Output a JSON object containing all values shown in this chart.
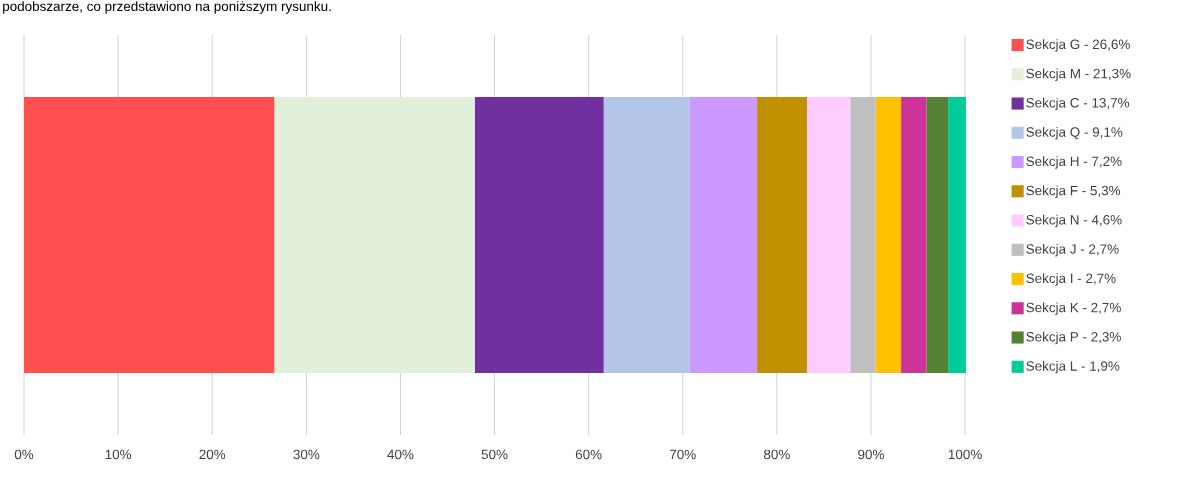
{
  "chart_data": {
    "type": "bar",
    "orientation": "horizontal",
    "stacked": true,
    "annotations": [
      "podobszarze, co przedstawiono na poniższym rysunku."
    ],
    "categories": [
      null
    ],
    "series": [
      {
        "name": "Sekcja G - 26,6%",
        "color": "#ff5050",
        "values": [
          26.6
        ]
      },
      {
        "name": "Sekcja M - 21,3%",
        "color": "#e2efda",
        "values": [
          21.3
        ]
      },
      {
        "name": "Sekcja C - 13,7%",
        "color": "#7030a0",
        "values": [
          13.7
        ]
      },
      {
        "name": "Sekcja Q - 9,1%",
        "color": "#b4c6e7",
        "values": [
          9.1
        ]
      },
      {
        "name": "Sekcja H - 7,2%",
        "color": "#cc99ff",
        "values": [
          7.2
        ]
      },
      {
        "name": "Sekcja F - 5,3%",
        "color": "#bf9000",
        "values": [
          5.3
        ]
      },
      {
        "name": "Sekcja N - 4,6%",
        "color": "#ffccff",
        "values": [
          4.6
        ]
      },
      {
        "name": "Sekcja J - 2,7%",
        "color": "#bfbfbf",
        "values": [
          2.7
        ]
      },
      {
        "name": "Sekcja I - 2,7%",
        "color": "#ffc000",
        "values": [
          2.7
        ]
      },
      {
        "name": "Sekcja K - 2,7%",
        "color": "#cc3399",
        "values": [
          2.7
        ]
      },
      {
        "name": "Sekcja P - 2,3%",
        "color": "#548235",
        "values": [
          2.3
        ]
      },
      {
        "name": "Sekcja L - 1,9%",
        "color": "#00cc99",
        "values": [
          1.9
        ]
      }
    ],
    "xlim": [
      0,
      100.1
    ],
    "xticks": [
      {
        "value": 0,
        "label": "0%"
      },
      {
        "value": 10,
        "label": "10%"
      },
      {
        "value": 20,
        "label": "20%"
      },
      {
        "value": 30,
        "label": "30%"
      },
      {
        "value": 40,
        "label": "40%"
      },
      {
        "value": 50,
        "label": "50%"
      },
      {
        "value": 60,
        "label": "60%"
      },
      {
        "value": 70,
        "label": "70%"
      },
      {
        "value": 80,
        "label": "80%"
      },
      {
        "value": 90,
        "label": "90%"
      },
      {
        "value": 100,
        "label": "100%"
      }
    ],
    "grid": "x",
    "legend": "right"
  }
}
